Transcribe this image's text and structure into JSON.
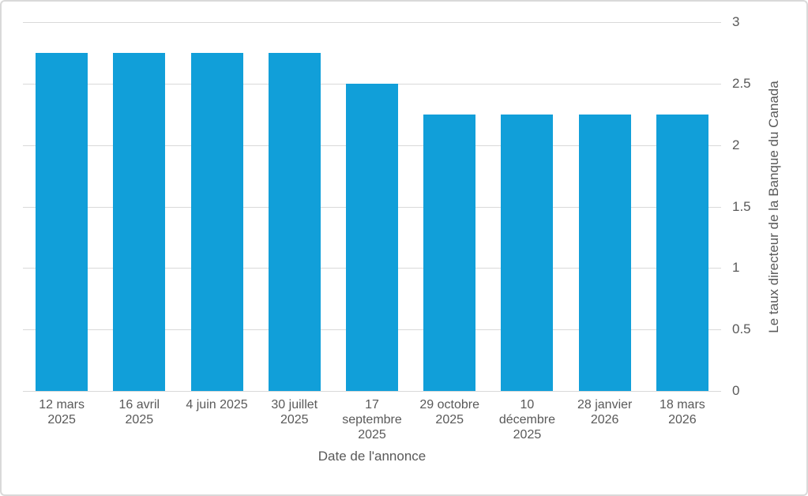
{
  "chart_data": {
    "type": "bar",
    "title": "",
    "xlabel": "Date de l'annonce",
    "ylabel": "Le taux directeur de la Banque du Canada",
    "categories": [
      "12 mars 2025",
      "16 avril 2025",
      "4 juin 2025",
      "30 juillet 2025",
      "17 septembre 2025",
      "29 octobre 2025",
      "10 décembre 2025",
      "28 janvier 2026",
      "18 mars 2026"
    ],
    "category_labels_wrapped": [
      "12 mars\n2025",
      "16 avril\n2025",
      "4 juin 2025",
      "30 juillet\n2025",
      "17\nseptembre\n2025",
      "29 octobre\n2025",
      "10\ndécembre\n2025",
      "28 janvier\n2026",
      "18 mars\n2026"
    ],
    "values": [
      2.75,
      2.75,
      2.75,
      2.75,
      2.5,
      2.25,
      2.25,
      2.25,
      2.25
    ],
    "ylim": [
      0,
      3
    ],
    "ytick_step": 0.5,
    "ytick_labels": [
      "0",
      "0.5",
      "1",
      "1.5",
      "2",
      "2.5",
      "3"
    ],
    "grid": true,
    "legend_position": "none",
    "yaxis_side": "right",
    "colors": {
      "bar": "#119FD9",
      "grid": "#D9D9D9",
      "axis_text": "#595959",
      "border": "#D9D9D9",
      "background": "#FFFFFF"
    }
  }
}
